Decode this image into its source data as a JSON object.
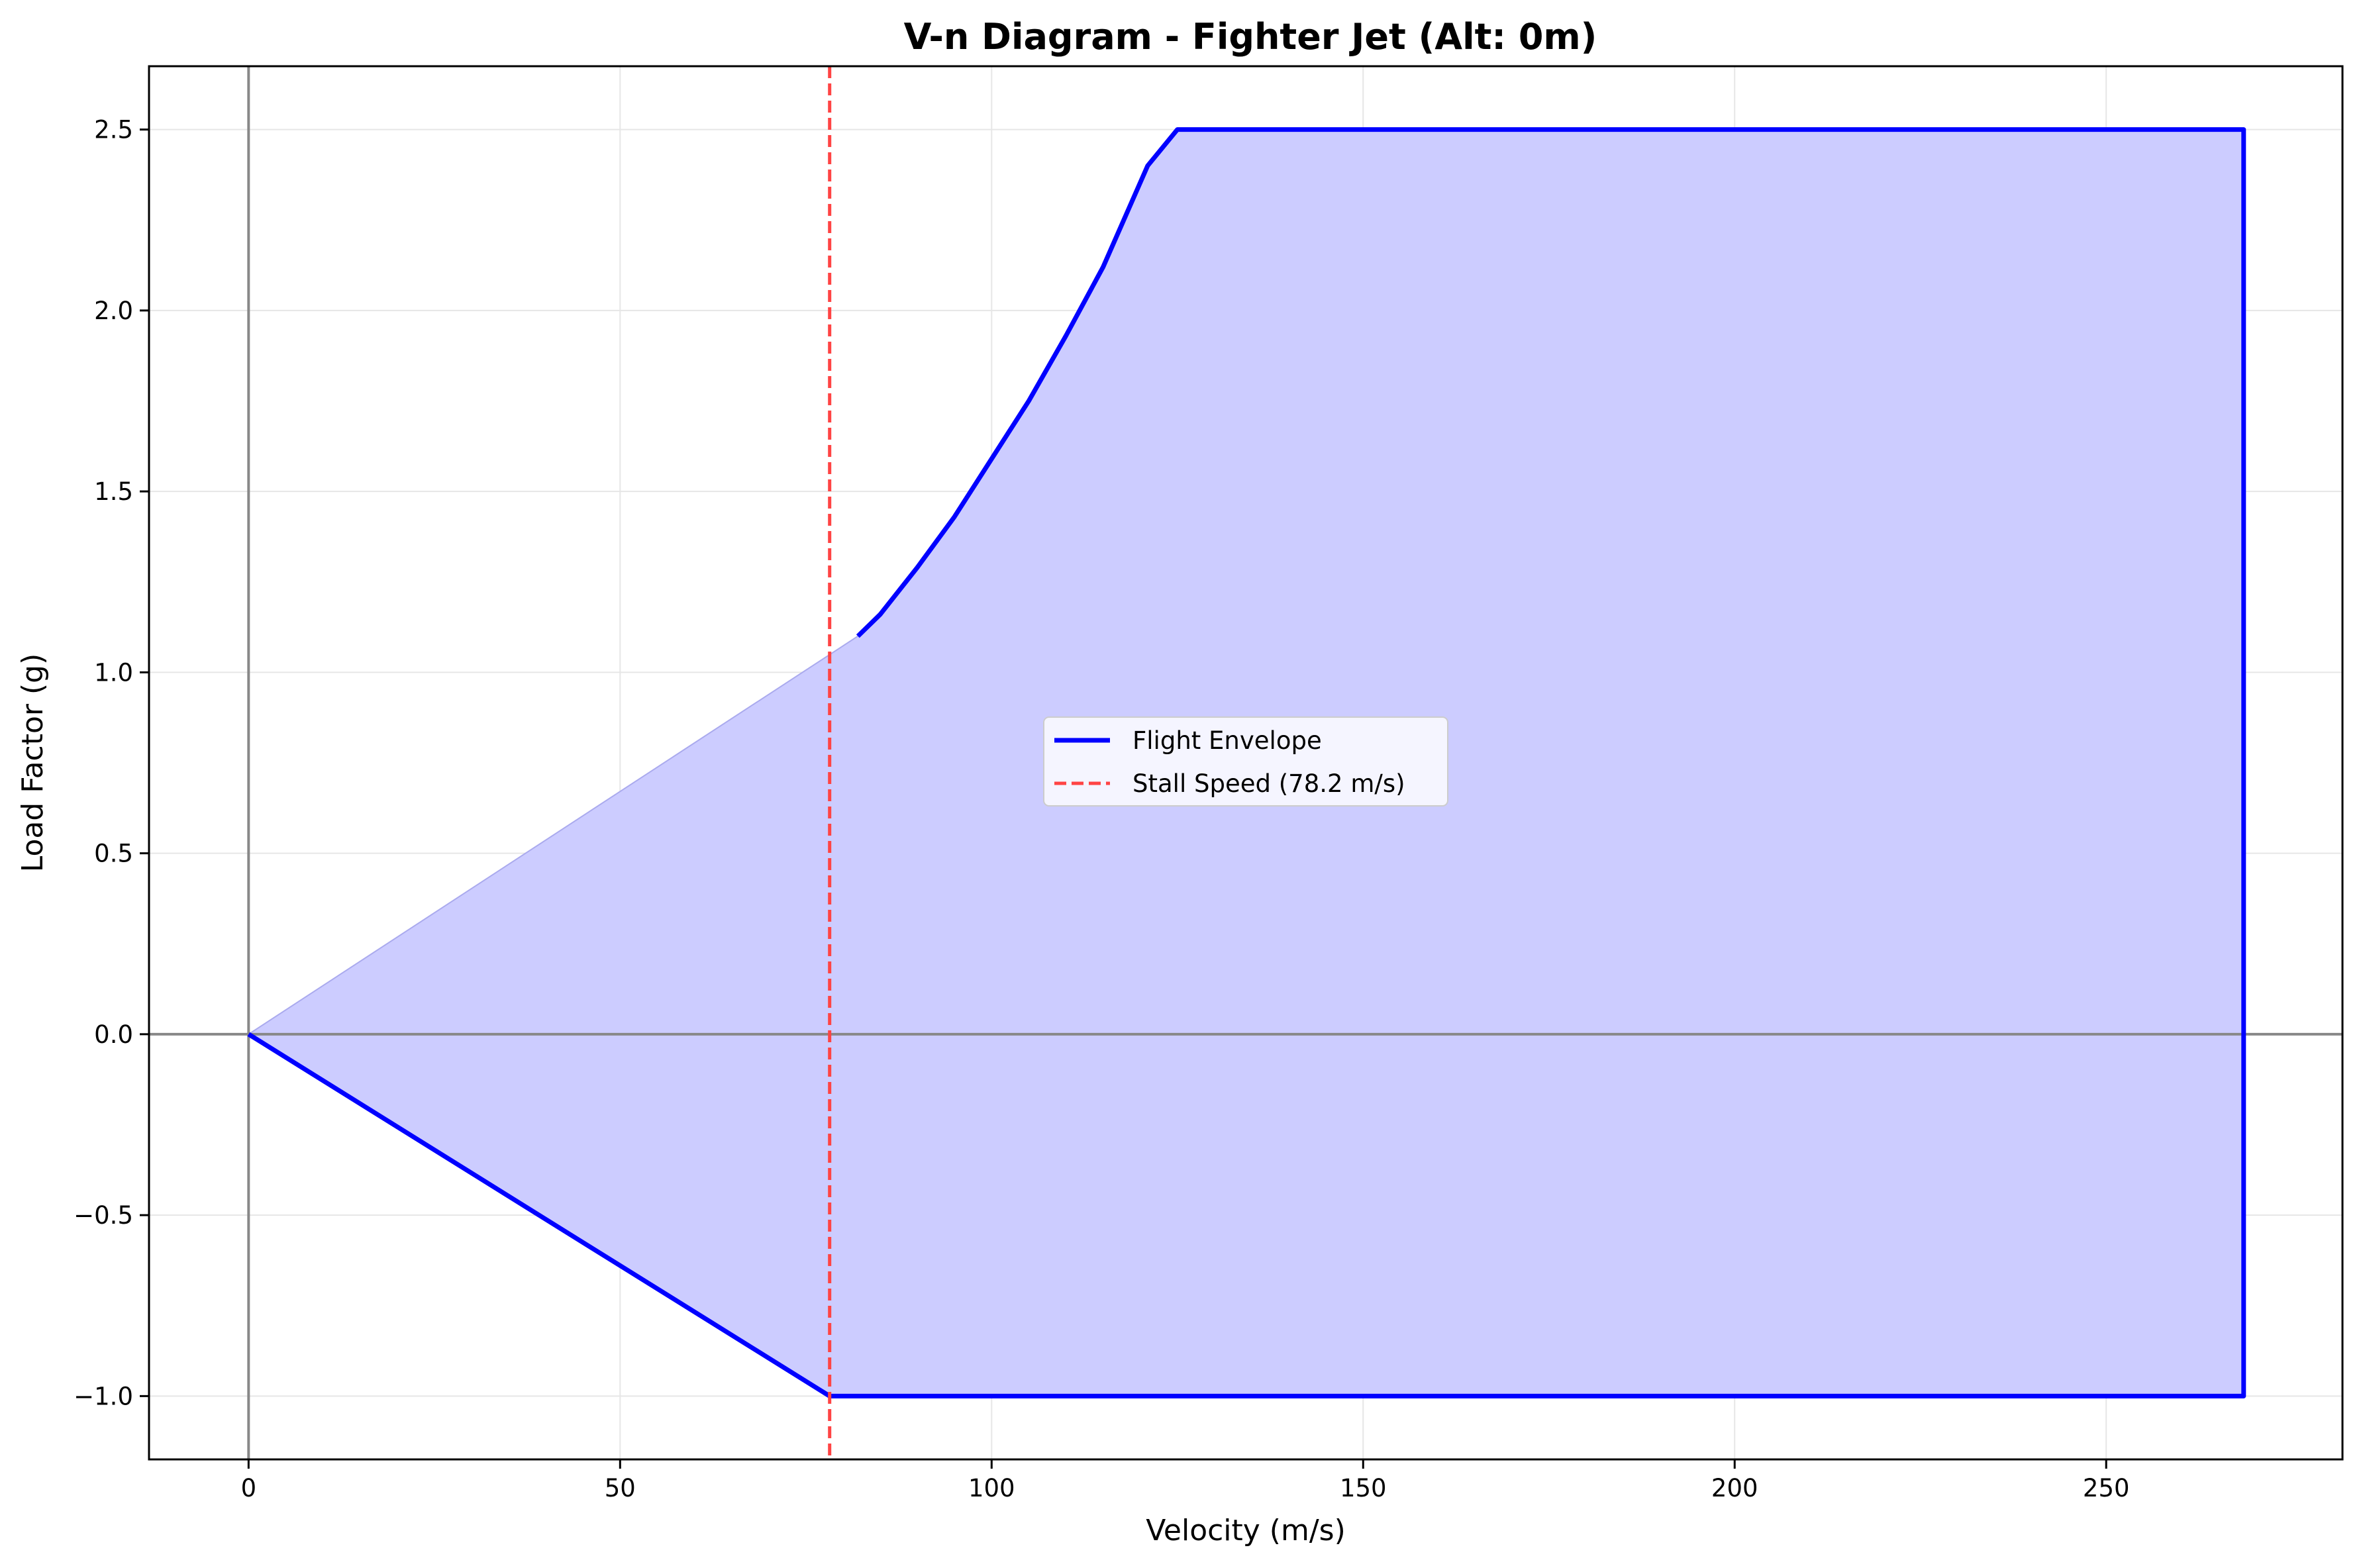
{
  "chart_data": {
    "type": "line",
    "title": "V-n Diagram - Fighter Jet (Alt: 0m)",
    "xlabel": "Velocity (m/s)",
    "ylabel": "Load Factor (g)",
    "xlim": [
      -13.4,
      281.8
    ],
    "ylim": [
      -1.175,
      2.675
    ],
    "xticks": [
      0,
      50,
      100,
      150,
      200,
      250
    ],
    "yticks": [
      -1.0,
      -0.5,
      0.0,
      0.5,
      1.0,
      1.5,
      2.0,
      2.5
    ],
    "xtick_labels": [
      "0",
      "50",
      "100",
      "150",
      "200",
      "250"
    ],
    "ytick_labels": [
      "−1.0",
      "−0.5",
      "0.0",
      "0.5",
      "1.0",
      "1.5",
      "2.0",
      "2.5"
    ],
    "grid": true,
    "legend_position": "center",
    "colors": {
      "envelope": "#0000ff",
      "fill": "#ccccff",
      "stall": "#ff4444",
      "zero_lines": "#888888",
      "grid": "#e6e6e6"
    },
    "series": [
      {
        "name": "Flight Envelope",
        "style": "solid",
        "segments": [
          {
            "x": [
              82,
              85,
              90,
              95,
              100,
              105,
              110,
              115,
              121,
              125,
              268.5,
              268.5,
              78.2,
              0
            ],
            "y": [
              1.1,
              1.16,
              1.29,
              1.43,
              1.59,
              1.75,
              1.93,
              2.12,
              2.4,
              2.5,
              2.5,
              -1.0,
              -1.0,
              0
            ]
          }
        ]
      },
      {
        "name": "Stall Speed (78.2 m/s)",
        "style": "dashed",
        "x": 78.2
      }
    ],
    "fill_region": {
      "x": [
        0,
        82,
        85,
        90,
        95,
        100,
        105,
        110,
        115,
        121,
        125,
        268.5,
        268.5,
        78.2,
        0
      ],
      "y": [
        0,
        1.1,
        1.16,
        1.29,
        1.43,
        1.59,
        1.75,
        1.93,
        2.12,
        2.4,
        2.5,
        2.5,
        -1.0,
        -1.0,
        0
      ]
    }
  }
}
